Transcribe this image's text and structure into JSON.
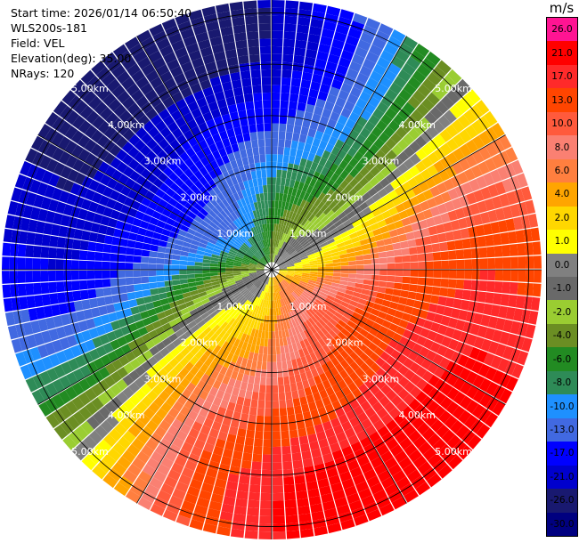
{
  "info": {
    "start_time": "Start time: 2026/01/14 06:50:40",
    "instrument": "WLS200s-181",
    "field": "Field: VEL",
    "elevation": "Elevation(deg): 35.00",
    "nrays": "NRays: 120"
  },
  "colorbar": {
    "unit": "m/s",
    "ticks": [
      "26.0",
      "21.0",
      "17.0",
      "13.0",
      "10.0",
      "8.0",
      "6.0",
      "4.0",
      "2.0",
      "1.0",
      "0.0",
      "-1.0",
      "-2.0",
      "-4.0",
      "-6.0",
      "-8.0",
      "-10.0",
      "-13.0",
      "-17.0",
      "-21.0",
      "-26.0",
      "-30.0"
    ],
    "colors": [
      "#ff1493",
      "#ff0000",
      "#ff2a2a",
      "#ff4500",
      "#ff5a3c",
      "#fa8072",
      "#ff7f3f",
      "#ffa500",
      "#ffd700",
      "#ffff00",
      "#808080",
      "#696969",
      "#9acd32",
      "#6b8e23",
      "#228b22",
      "#2e8b57",
      "#1e90ff",
      "#4169e1",
      "#0000ff",
      "#0000cd",
      "#191970",
      "#000080"
    ]
  },
  "chart_data": {
    "type": "ppi",
    "field": "VEL",
    "unit": "m/s",
    "nrays": 120,
    "range_rings_km": [
      1.0,
      2.0,
      3.0,
      4.0,
      5.0
    ],
    "ring_labels": [
      "1.00km",
      "2.00km",
      "3.00km",
      "4.00km",
      "5.00km"
    ],
    "max_range_km": 5.25,
    "ring_label_directions": [
      "NE",
      "SE",
      "SW",
      "NW"
    ],
    "radial_lines_every_deg": 30
  }
}
